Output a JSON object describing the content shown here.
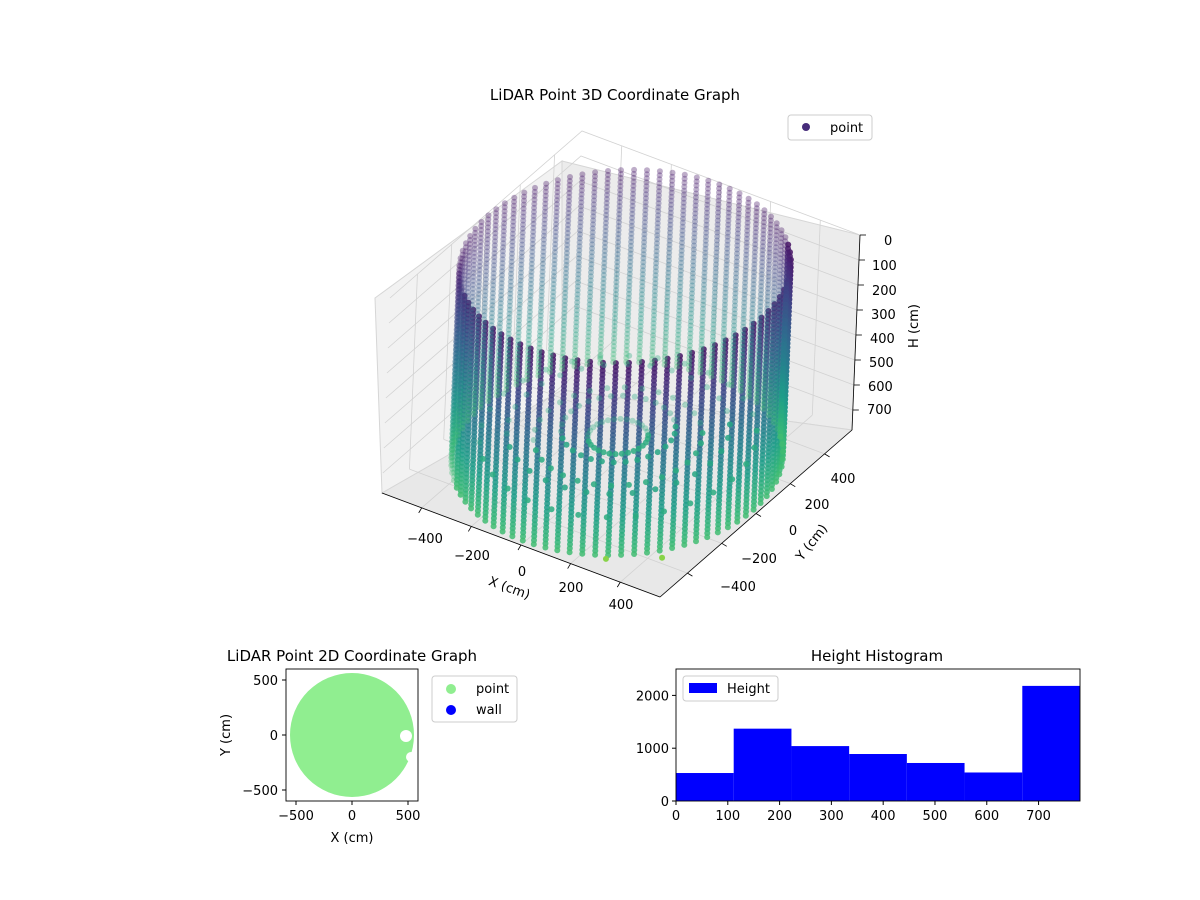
{
  "chart_data": [
    {
      "type": "scatter3d",
      "title": "LiDAR Point 3D Coordinate Graph",
      "xlabel": "X (cm)",
      "ylabel": "Y (cm)",
      "zlabel": "H (cm)",
      "x_ticks": [
        "−400",
        "−200",
        "0",
        "200",
        "400"
      ],
      "y_ticks": [
        "−400",
        "−200",
        "0",
        "200",
        "400"
      ],
      "z_ticks": [
        "0",
        "100",
        "200",
        "300",
        "400",
        "500",
        "600",
        "700"
      ],
      "xlim": [
        -560,
        560
      ],
      "ylim": [
        -560,
        560
      ],
      "zlim": [
        0,
        780
      ],
      "z_inverted": true,
      "legend": [
        {
          "label": "point",
          "color": "#472d7b"
        }
      ],
      "legend_position": "upper right",
      "colormap": "viridis",
      "cylinder_radius_cm": 550,
      "cylinder_height_cm": 780
    },
    {
      "type": "scatter",
      "title": "LiDAR Point 2D Coordinate Graph",
      "xlabel": "X (cm)",
      "ylabel": "Y (cm)",
      "x_ticks": [
        "−500",
        "0",
        "500"
      ],
      "y_ticks": [
        "500",
        "0",
        "−500"
      ],
      "xlim": [
        -560,
        560
      ],
      "ylim": [
        -600,
        600
      ],
      "legend": [
        {
          "label": "point",
          "color": "#90ee90"
        },
        {
          "label": "wall",
          "color": "#0000ff"
        }
      ],
      "legend_position": "outside right"
    },
    {
      "type": "bar",
      "title": "Height Histogram",
      "series": [
        {
          "name": "Height",
          "color": "#0000ff"
        }
      ],
      "bin_edges": [
        0,
        111.4,
        222.9,
        334.3,
        445.7,
        557.1,
        668.6,
        780
      ],
      "counts": [
        530,
        1370,
        1040,
        890,
        720,
        540,
        2180
      ],
      "x_ticks": [
        "0",
        "100",
        "200",
        "300",
        "400",
        "500",
        "600",
        "700"
      ],
      "y_ticks": [
        "0",
        "1000",
        "2000"
      ],
      "xlim": [
        0,
        780
      ],
      "ylim": [
        0,
        2500
      ],
      "legend_position": "upper left"
    }
  ]
}
